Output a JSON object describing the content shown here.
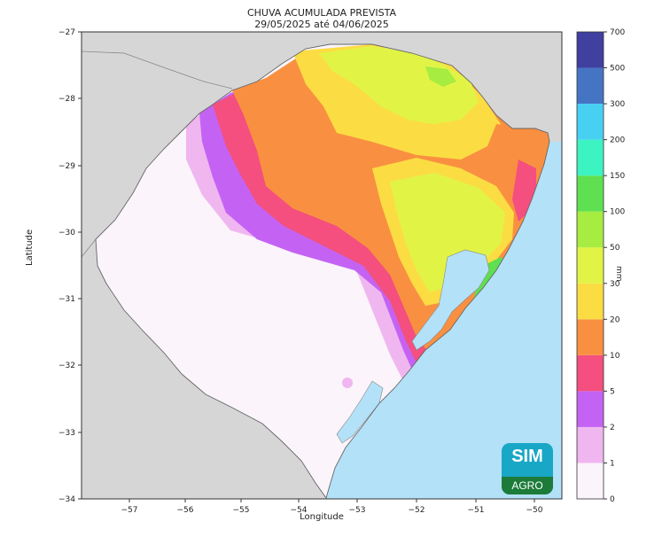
{
  "title": {
    "line1": "CHUVA ACUMULADA PREVISTA",
    "line2": "29/05/2025 até 04/06/2025"
  },
  "axes": {
    "xlabel": "Longitude",
    "ylabel": "Latitude",
    "xticks": [
      "−57",
      "−56",
      "−55",
      "−54",
      "−53",
      "−52",
      "−51",
      "−50"
    ],
    "yticks": [
      "−27",
      "−28",
      "−29",
      "−30",
      "−31",
      "−32",
      "−33",
      "−34"
    ]
  },
  "colorbar": {
    "unit": "mm",
    "ticks": [
      "0",
      "1",
      "2",
      "5",
      "10",
      "20",
      "30",
      "50",
      "100",
      "150",
      "200",
      "300",
      "500",
      "700"
    ],
    "colors": [
      "#fbf4fb",
      "#f0b6f0",
      "#c463f3",
      "#f44f7f",
      "#f99041",
      "#fbdd43",
      "#e1f446",
      "#a6ec41",
      "#5ee050",
      "#3cf3c2",
      "#48d0f2",
      "#4574c4",
      "#4040a0"
    ]
  },
  "map_colors": {
    "ocean": "#b3e1f7",
    "neighbors": "#d6d6d6",
    "lagoon": "#b3e1f7"
  },
  "logo": {
    "text1": "SIM",
    "text2": "AGRO"
  }
}
